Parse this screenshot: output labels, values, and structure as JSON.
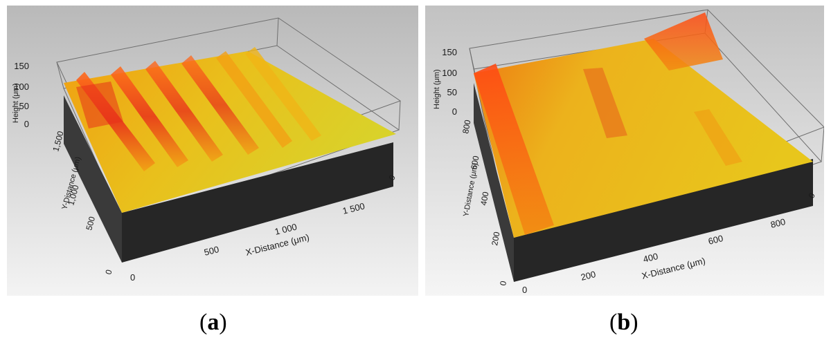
{
  "panels": [
    {
      "id": "a",
      "caption_open": "(",
      "caption_letter": "a",
      "caption_close": ")",
      "z_axis_label": "Height (μm)",
      "z_ticks": [
        "150",
        "100",
        "50",
        "0"
      ],
      "y_axis_label": "Y-Distance (μm)",
      "y_ticks": [
        "1,500",
        "1,000",
        "500",
        "0"
      ],
      "x_axis_label": "X-Distance (μm)",
      "x_ticks": [
        "0",
        "500",
        "1 000",
        "1 500"
      ],
      "x_end_tick": "0"
    },
    {
      "id": "b",
      "caption_open": "(",
      "caption_letter": "b",
      "caption_close": ")",
      "z_axis_label": "Height (μm)",
      "z_ticks": [
        "150",
        "100",
        "50",
        "0"
      ],
      "y_axis_label": "Y-Distance (μm)",
      "y_ticks": [
        "800",
        "600",
        "400",
        "200",
        "0"
      ],
      "x_axis_label": "X-Distance (μm)",
      "x_ticks": [
        "0",
        "200",
        "400",
        "600",
        "800"
      ],
      "x_end_tick": "0"
    }
  ],
  "colors": {
    "background_top": "#bdbdbd",
    "background_bottom": "#f2f2f2",
    "surface_yellow": "#e8c21a",
    "surface_orange": "#f29a12",
    "ridge_red": "#e8321a",
    "base_block": "#2b2b2b"
  }
}
